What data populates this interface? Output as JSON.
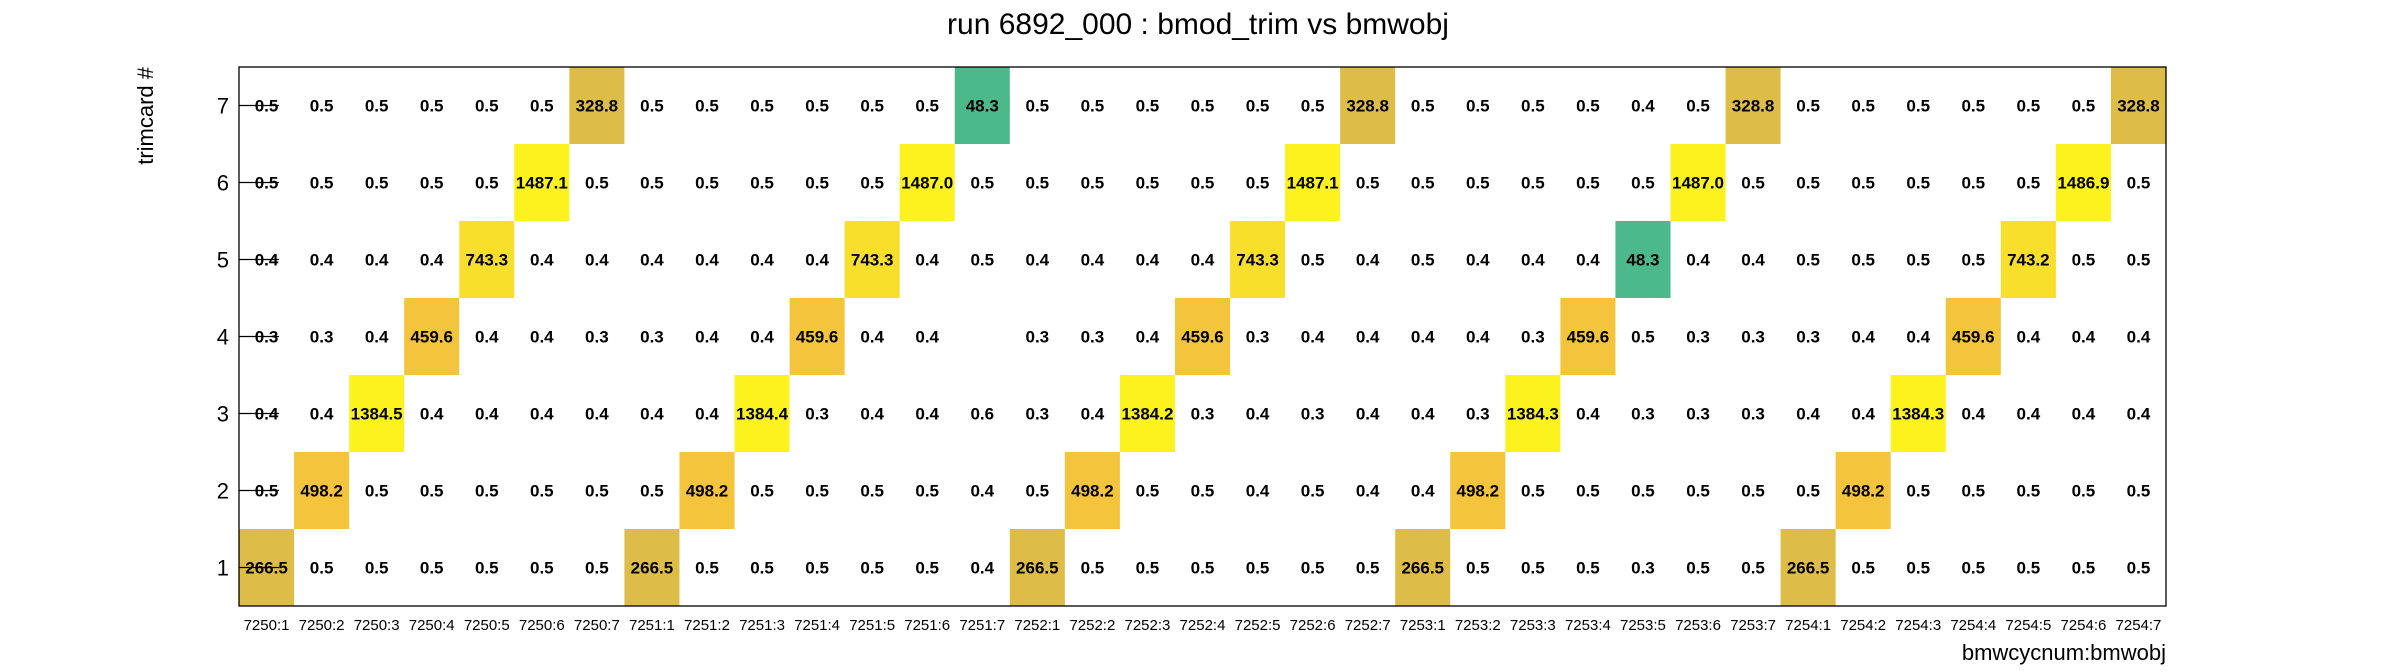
{
  "chart_data": {
    "type": "heatmap",
    "title": "run 6892_000 : bmod_trim vs bmwobj",
    "xlabel": "bmwcycnum:bmwobj",
    "ylabel": "trimcard #",
    "x_categories": [
      "7250:1",
      "7250:2",
      "7250:3",
      "7250:4",
      "7250:5",
      "7250:6",
      "7250:7",
      "7251:1",
      "7251:2",
      "7251:3",
      "7251:4",
      "7251:5",
      "7251:6",
      "7251:7",
      "7252:1",
      "7252:2",
      "7252:3",
      "7252:4",
      "7252:5",
      "7252:6",
      "7252:7",
      "7253:1",
      "7253:2",
      "7253:3",
      "7253:4",
      "7253:5",
      "7253:6",
      "7253:7",
      "7254:1",
      "7254:2",
      "7254:3",
      "7254:4",
      "7254:5",
      "7254:6",
      "7254:7"
    ],
    "y_categories": [
      "1",
      "2",
      "3",
      "4",
      "5",
      "6",
      "7"
    ],
    "rows": [
      {
        "y": "7",
        "values": [
          "0.5",
          "0.5",
          "0.5",
          "0.5",
          "0.5",
          "0.5",
          "328.8",
          "0.5",
          "0.5",
          "0.5",
          "0.5",
          "0.5",
          "0.5",
          "48.3",
          "0.5",
          "0.5",
          "0.5",
          "0.5",
          "0.5",
          "0.5",
          "328.8",
          "0.5",
          "0.5",
          "0.5",
          "0.5",
          "0.4",
          "0.5",
          "328.8",
          "0.5",
          "0.5",
          "0.5",
          "0.5",
          "0.5",
          "0.5",
          "328.8"
        ]
      },
      {
        "y": "6",
        "values": [
          "0.5",
          "0.5",
          "0.5",
          "0.5",
          "0.5",
          "1487.1",
          "0.5",
          "0.5",
          "0.5",
          "0.5",
          "0.5",
          "0.5",
          "1487.0",
          "0.5",
          "0.5",
          "0.5",
          "0.5",
          "0.5",
          "0.5",
          "1487.1",
          "0.5",
          "0.5",
          "0.5",
          "0.5",
          "0.5",
          "0.5",
          "1487.0",
          "0.5",
          "0.5",
          "0.5",
          "0.5",
          "0.5",
          "0.5",
          "1486.9",
          "0.5"
        ]
      },
      {
        "y": "5",
        "values": [
          "0.4",
          "0.4",
          "0.4",
          "0.4",
          "743.3",
          "0.4",
          "0.4",
          "0.4",
          "0.4",
          "0.4",
          "0.4",
          "743.3",
          "0.4",
          "0.5",
          "0.4",
          "0.4",
          "0.4",
          "0.4",
          "743.3",
          "0.5",
          "0.4",
          "0.5",
          "0.4",
          "0.4",
          "0.4",
          "48.3",
          "0.4",
          "0.4",
          "0.5",
          "0.5",
          "0.5",
          "0.5",
          "743.2",
          "0.5",
          "0.5"
        ]
      },
      {
        "y": "4",
        "values": [
          "0.3",
          "0.3",
          "0.4",
          "459.6",
          "0.4",
          "0.4",
          "0.3",
          "0.3",
          "0.4",
          "0.4",
          "459.6",
          "0.4",
          "0.4",
          "",
          "0.3",
          "0.3",
          "0.4",
          "459.6",
          "0.3",
          "0.4",
          "0.4",
          "0.4",
          "0.4",
          "0.3",
          "459.6",
          "0.5",
          "0.3",
          "0.3",
          "0.3",
          "0.4",
          "0.4",
          "459.6",
          "0.4",
          "0.4",
          "0.4"
        ]
      },
      {
        "y": "3",
        "values": [
          "0.4",
          "0.4",
          "1384.5",
          "0.4",
          "0.4",
          "0.4",
          "0.4",
          "0.4",
          "0.4",
          "1384.4",
          "0.3",
          "0.4",
          "0.4",
          "0.6",
          "0.3",
          "0.4",
          "1384.2",
          "0.3",
          "0.4",
          "0.3",
          "0.4",
          "0.4",
          "0.3",
          "1384.3",
          "0.4",
          "0.3",
          "0.3",
          "0.3",
          "0.4",
          "0.4",
          "1384.3",
          "0.4",
          "0.4",
          "0.4",
          "0.4"
        ]
      },
      {
        "y": "2",
        "values": [
          "0.5",
          "498.2",
          "0.5",
          "0.5",
          "0.5",
          "0.5",
          "0.5",
          "0.5",
          "498.2",
          "0.5",
          "0.5",
          "0.5",
          "0.5",
          "0.4",
          "0.5",
          "498.2",
          "0.5",
          "0.5",
          "0.4",
          "0.5",
          "0.4",
          "0.4",
          "498.2",
          "0.5",
          "0.5",
          "0.5",
          "0.5",
          "0.5",
          "0.5",
          "498.2",
          "0.5",
          "0.5",
          "0.5",
          "0.5",
          "0.5"
        ]
      },
      {
        "y": "1",
        "values": [
          "266.5",
          "0.5",
          "0.5",
          "0.5",
          "0.5",
          "0.5",
          "0.5",
          "266.5",
          "0.5",
          "0.5",
          "0.5",
          "0.5",
          "0.5",
          "0.4",
          "266.5",
          "0.5",
          "0.5",
          "0.5",
          "0.5",
          "0.5",
          "0.5",
          "266.5",
          "0.5",
          "0.5",
          "0.5",
          "0.3",
          "0.5",
          "0.5",
          "266.5",
          "0.5",
          "0.5",
          "0.5",
          "0.5",
          "0.5",
          "0.5"
        ]
      }
    ],
    "color_scale": [
      {
        "min": 0,
        "color": "#4cb98b"
      },
      {
        "min": 100,
        "color": "#ddbd48"
      },
      {
        "min": 400,
        "color": "#f3c43c"
      },
      {
        "min": 600,
        "color": "#f8df2c"
      },
      {
        "min": 1000,
        "color": "#fbf21e"
      }
    ],
    "color_threshold": 10,
    "grid": false,
    "legend": "none"
  }
}
